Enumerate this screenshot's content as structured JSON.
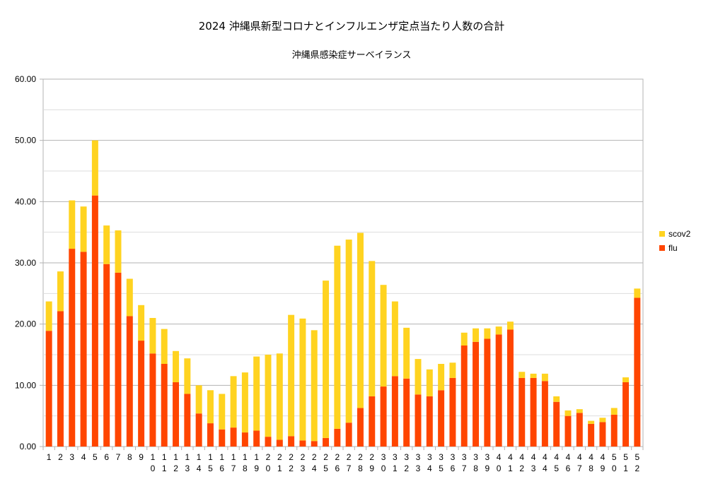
{
  "chart_data": {
    "type": "bar",
    "stacked": true,
    "title": "2024  沖縄県新型コロナとインフルエンザ定点当たり人数の合計",
    "subtitle": "沖縄県感染症サーベイランス",
    "xlabel": "",
    "ylabel": "",
    "ylim": [
      0,
      60
    ],
    "yticks": [
      "0.00",
      "10.00",
      "20.00",
      "30.00",
      "40.00",
      "50.00",
      "60.00"
    ],
    "grid": true,
    "legend_position": "right",
    "categories": [
      "1",
      "2",
      "3",
      "4",
      "5",
      "6",
      "7",
      "8",
      "9",
      "10",
      "11",
      "12",
      "13",
      "14",
      "15",
      "16",
      "17",
      "18",
      "19",
      "20",
      "21",
      "22",
      "23",
      "24",
      "25",
      "26",
      "27",
      "28",
      "29",
      "30",
      "31",
      "32",
      "33",
      "34",
      "35",
      "36",
      "37",
      "38",
      "39",
      "40",
      "41",
      "42",
      "43",
      "44",
      "45",
      "46",
      "47",
      "48",
      "49",
      "50",
      "51",
      "52"
    ],
    "series": [
      {
        "name": "flu",
        "color": "#ff4500",
        "values": [
          18.9,
          22.1,
          32.3,
          31.8,
          41.0,
          29.8,
          28.4,
          21.3,
          17.3,
          15.2,
          13.5,
          10.5,
          8.6,
          5.4,
          3.8,
          2.8,
          3.1,
          2.3,
          2.6,
          1.6,
          1.1,
          1.7,
          1.0,
          0.9,
          1.4,
          2.9,
          3.9,
          6.3,
          8.2,
          9.8,
          11.5,
          11.1,
          8.5,
          8.2,
          9.2,
          11.2,
          16.5,
          17.1,
          17.6,
          18.3,
          19.1,
          11.2,
          11.2,
          10.7,
          7.3,
          5.0,
          5.5,
          3.7,
          4.0,
          5.2,
          10.5,
          24.3
        ]
      },
      {
        "name": "scov2",
        "color": "#ffd320",
        "values": [
          4.8,
          6.5,
          7.9,
          7.4,
          9.0,
          6.3,
          6.9,
          6.1,
          5.8,
          5.8,
          5.7,
          5.1,
          5.8,
          4.6,
          5.4,
          5.8,
          8.4,
          9.8,
          12.1,
          13.4,
          14.1,
          19.8,
          19.9,
          18.1,
          25.7,
          29.9,
          29.9,
          28.6,
          22.1,
          16.6,
          12.2,
          8.3,
          5.8,
          4.4,
          4.3,
          2.5,
          2.1,
          2.2,
          1.7,
          1.3,
          1.3,
          1.0,
          0.7,
          1.2,
          0.9,
          0.9,
          0.6,
          0.5,
          0.7,
          1.1,
          0.8,
          1.5
        ]
      }
    ]
  }
}
